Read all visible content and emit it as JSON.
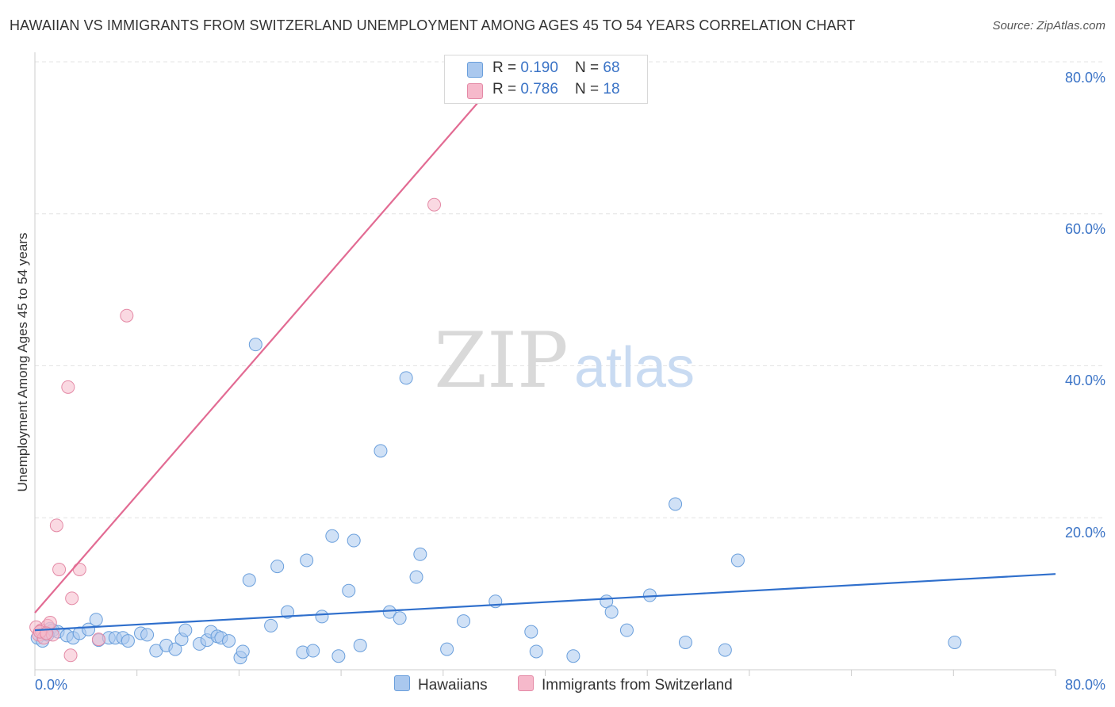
{
  "title": "HAWAIIAN VS IMMIGRANTS FROM SWITZERLAND UNEMPLOYMENT AMONG AGES 45 TO 54 YEARS CORRELATION CHART",
  "source": "Source: ZipAtlas.com",
  "watermark": {
    "zip": "ZIP",
    "atlas": "atlas"
  },
  "colors": {
    "blue_fill": "#aac8ee",
    "blue_stroke": "#6a9fdc",
    "blue_line": "#2f6fcc",
    "pink_fill": "#f6b9cb",
    "pink_stroke": "#e48aa6",
    "pink_line": "#e26b93",
    "tick_text": "#3a73c6",
    "grid": "#e4e4e4"
  },
  "legend": {
    "rows": [
      {
        "r_label": "R = ",
        "r_value": "0.190",
        "n_label": "N = ",
        "n_value": "68"
      },
      {
        "r_label": "R = ",
        "r_value": "0.786",
        "n_label": "N = ",
        "n_value": "18"
      }
    ]
  },
  "chart_data": {
    "type": "scatter",
    "title": "HAWAIIAN VS IMMIGRANTS FROM SWITZERLAND UNEMPLOYMENT AMONG AGES 45 TO 54 YEARS CORRELATION CHART",
    "xlabel": "",
    "ylabel": "Unemployment Among Ages 45 to 54 years",
    "xlim": [
      0,
      80
    ],
    "ylim": [
      0,
      80
    ],
    "x_tick_labels": [
      "0.0%",
      "80.0%"
    ],
    "y_ticks": [
      20,
      40,
      60,
      80
    ],
    "y_tick_labels": [
      "20.0%",
      "40.0%",
      "60.0%",
      "80.0%"
    ],
    "grid": true,
    "legend_position": "top-center",
    "series": [
      {
        "name": "Hawaiians",
        "color": "#aac8ee",
        "r": 0.19,
        "n": 68,
        "trend": {
          "x": [
            0,
            80
          ],
          "y": [
            5.2,
            12.6
          ]
        },
        "points": [
          [
            0.2,
            4.2
          ],
          [
            0.4,
            5.0
          ],
          [
            0.8,
            4.8
          ],
          [
            1.2,
            5.4
          ],
          [
            1.4,
            5.2
          ],
          [
            1.8,
            5.0
          ],
          [
            2.5,
            4.5
          ],
          [
            3.0,
            4.2
          ],
          [
            3.5,
            4.8
          ],
          [
            4.2,
            5.3
          ],
          [
            4.8,
            6.6
          ],
          [
            5.0,
            3.9
          ],
          [
            5.8,
            4.2
          ],
          [
            6.3,
            4.2
          ],
          [
            6.9,
            4.2
          ],
          [
            7.3,
            3.8
          ],
          [
            8.3,
            4.8
          ],
          [
            8.8,
            4.6
          ],
          [
            9.5,
            2.5
          ],
          [
            10.3,
            3.2
          ],
          [
            11.0,
            2.7
          ],
          [
            11.5,
            4.0
          ],
          [
            11.8,
            5.2
          ],
          [
            12.9,
            3.4
          ],
          [
            13.5,
            3.9
          ],
          [
            13.8,
            5.0
          ],
          [
            14.3,
            4.4
          ],
          [
            14.6,
            4.2
          ],
          [
            15.2,
            3.8
          ],
          [
            16.1,
            1.6
          ],
          [
            16.3,
            2.4
          ],
          [
            16.8,
            11.8
          ],
          [
            17.3,
            42.8
          ],
          [
            18.5,
            5.8
          ],
          [
            19.0,
            13.6
          ],
          [
            19.8,
            7.6
          ],
          [
            21.0,
            2.3
          ],
          [
            21.3,
            14.4
          ],
          [
            21.8,
            2.5
          ],
          [
            22.5,
            7.0
          ],
          [
            23.3,
            17.6
          ],
          [
            23.8,
            1.8
          ],
          [
            24.6,
            10.4
          ],
          [
            25.0,
            17.0
          ],
          [
            25.5,
            3.2
          ],
          [
            27.1,
            28.8
          ],
          [
            27.8,
            7.6
          ],
          [
            28.6,
            6.8
          ],
          [
            29.1,
            38.4
          ],
          [
            29.9,
            12.2
          ],
          [
            30.2,
            15.2
          ],
          [
            32.3,
            2.7
          ],
          [
            33.6,
            6.4
          ],
          [
            36.1,
            9.0
          ],
          [
            38.9,
            5.0
          ],
          [
            39.3,
            2.4
          ],
          [
            42.2,
            1.8
          ],
          [
            44.8,
            9.0
          ],
          [
            45.2,
            7.6
          ],
          [
            46.4,
            5.2
          ],
          [
            48.2,
            9.8
          ],
          [
            50.2,
            21.8
          ],
          [
            51.0,
            3.6
          ],
          [
            54.1,
            2.6
          ],
          [
            55.1,
            14.4
          ],
          [
            72.1,
            3.6
          ],
          [
            0.6,
            3.8
          ],
          [
            1.0,
            4.6
          ]
        ]
      },
      {
        "name": "Immigrants from Switzerland",
        "color": "#f6b9cb",
        "r": 0.786,
        "n": 18,
        "trend": {
          "x": [
            0,
            37.5
          ],
          "y": [
            7.5,
            80
          ]
        },
        "points": [
          [
            0.1,
            5.6
          ],
          [
            0.3,
            4.6
          ],
          [
            0.5,
            5.2
          ],
          [
            0.7,
            4.2
          ],
          [
            1.0,
            5.8
          ],
          [
            1.2,
            6.2
          ],
          [
            1.4,
            4.6
          ],
          [
            1.7,
            19.0
          ],
          [
            1.9,
            13.2
          ],
          [
            2.6,
            37.2
          ],
          [
            2.8,
            1.9
          ],
          [
            2.9,
            9.4
          ],
          [
            3.5,
            13.2
          ],
          [
            5.0,
            4.0
          ],
          [
            7.2,
            46.6
          ],
          [
            31.3,
            61.2
          ],
          [
            0.4,
            5.0
          ],
          [
            0.9,
            4.8
          ]
        ]
      }
    ]
  },
  "bottom_legend": [
    {
      "label": "Hawaiians"
    },
    {
      "label": "Immigrants from Switzerland"
    }
  ]
}
